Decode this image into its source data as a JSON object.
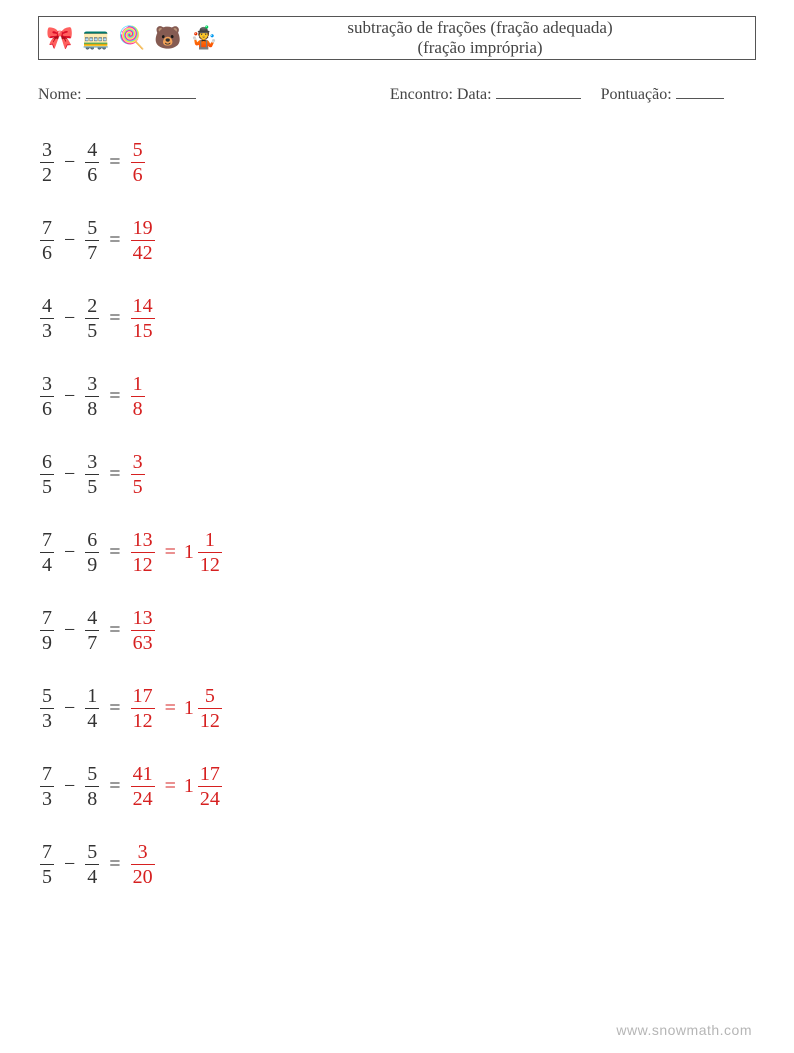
{
  "header": {
    "title_line1": "subtração de frações (fração adequada)",
    "title_line2": "(fração imprópria)",
    "icons": [
      "🎀",
      "🚃",
      "🍭",
      "🐻",
      "🤹"
    ]
  },
  "info": {
    "name_label": "Nome:",
    "date_label": "Encontro: Data:",
    "score_label": "Pontuação:",
    "name_underline_width": 110,
    "date_underline_width": 85,
    "score_underline_width": 48
  },
  "style": {
    "problem_color": "#333333",
    "answer_color": "#d62020",
    "font_size_problem": 20,
    "minus_sign": "−",
    "equals_sign": "="
  },
  "problems": [
    {
      "a": {
        "n": 3,
        "d": 2
      },
      "b": {
        "n": 4,
        "d": 6
      },
      "ans": [
        {
          "type": "frac",
          "n": 5,
          "d": 6
        }
      ]
    },
    {
      "a": {
        "n": 7,
        "d": 6
      },
      "b": {
        "n": 5,
        "d": 7
      },
      "ans": [
        {
          "type": "frac",
          "n": 19,
          "d": 42
        }
      ]
    },
    {
      "a": {
        "n": 4,
        "d": 3
      },
      "b": {
        "n": 2,
        "d": 5
      },
      "ans": [
        {
          "type": "frac",
          "n": 14,
          "d": 15
        }
      ]
    },
    {
      "a": {
        "n": 3,
        "d": 6
      },
      "b": {
        "n": 3,
        "d": 8
      },
      "ans": [
        {
          "type": "frac",
          "n": 1,
          "d": 8
        }
      ]
    },
    {
      "a": {
        "n": 6,
        "d": 5
      },
      "b": {
        "n": 3,
        "d": 5
      },
      "ans": [
        {
          "type": "frac",
          "n": 3,
          "d": 5
        }
      ]
    },
    {
      "a": {
        "n": 7,
        "d": 4
      },
      "b": {
        "n": 6,
        "d": 9
      },
      "ans": [
        {
          "type": "frac",
          "n": 13,
          "d": 12
        },
        {
          "type": "mixed",
          "w": 1,
          "n": 1,
          "d": 12
        }
      ]
    },
    {
      "a": {
        "n": 7,
        "d": 9
      },
      "b": {
        "n": 4,
        "d": 7
      },
      "ans": [
        {
          "type": "frac",
          "n": 13,
          "d": 63
        }
      ]
    },
    {
      "a": {
        "n": 5,
        "d": 3
      },
      "b": {
        "n": 1,
        "d": 4
      },
      "ans": [
        {
          "type": "frac",
          "n": 17,
          "d": 12
        },
        {
          "type": "mixed",
          "w": 1,
          "n": 5,
          "d": 12
        }
      ]
    },
    {
      "a": {
        "n": 7,
        "d": 3
      },
      "b": {
        "n": 5,
        "d": 8
      },
      "ans": [
        {
          "type": "frac",
          "n": 41,
          "d": 24
        },
        {
          "type": "mixed",
          "w": 1,
          "n": 17,
          "d": 24
        }
      ]
    },
    {
      "a": {
        "n": 7,
        "d": 5
      },
      "b": {
        "n": 5,
        "d": 4
      },
      "ans": [
        {
          "type": "frac",
          "n": 3,
          "d": 20
        }
      ]
    }
  ],
  "watermark": "www.snowmath.com"
}
